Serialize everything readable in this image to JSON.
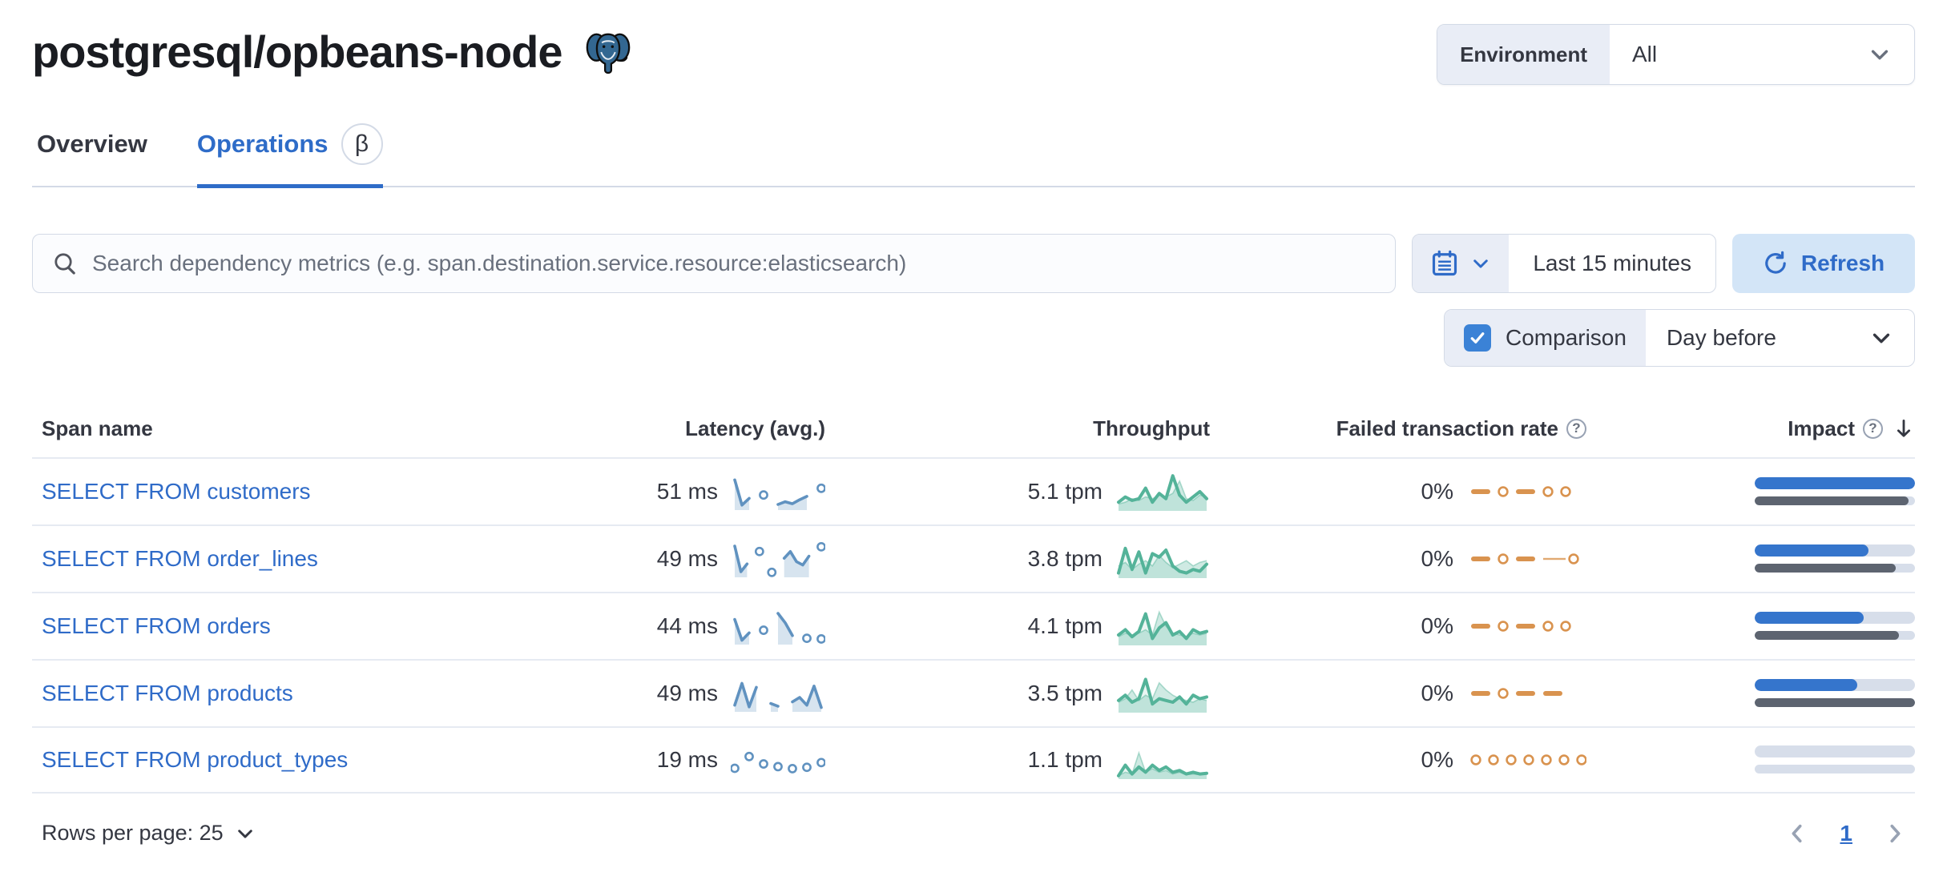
{
  "header": {
    "title": "postgresql/opbeans-node",
    "environment_label": "Environment",
    "environment_value": "All"
  },
  "tabs": [
    {
      "label": "Overview",
      "active": false
    },
    {
      "label": "Operations",
      "active": true,
      "beta": "β"
    }
  ],
  "toolbar": {
    "search_placeholder": "Search dependency metrics (e.g. span.destination.service.resource:elasticsearch)",
    "time_range": "Last 15 minutes",
    "refresh_label": "Refresh",
    "comparison_label": "Comparison",
    "comparison_checked": true,
    "comparison_value": "Day before"
  },
  "colors": {
    "link_blue": "#2f6bc8",
    "latency_spark": "#6092c0",
    "throughput_spark": "#54b399",
    "failed_spark": "#d9934f",
    "impact_current": "#3575cc",
    "impact_previous": "#5d6470"
  },
  "table": {
    "columns": [
      "Span name",
      "Latency (avg.)",
      "Throughput",
      "Failed transaction rate",
      "Impact"
    ],
    "rows": [
      {
        "span_name": "SELECT FROM customers",
        "latency": "51 ms",
        "latency_spark": [
          85,
          10,
          30,
          null,
          40,
          null,
          12,
          20,
          14,
          26,
          36,
          null,
          60
        ],
        "throughput": "5.1 tpm",
        "throughput_spark": [
          20,
          35,
          25,
          30,
          60,
          20,
          45,
          30,
          95,
          40,
          20,
          35,
          50,
          30
        ],
        "throughput_prev_spark": [
          15,
          20,
          30,
          25,
          35,
          30,
          40,
          35,
          45,
          80,
          30,
          25,
          40,
          35
        ],
        "failed_rate": "0%",
        "failed_pattern": [
          "dash",
          "dot",
          "dash",
          "dot",
          "dot"
        ],
        "impact_current": 100,
        "impact_previous": 96
      },
      {
        "span_name": "SELECT FROM order_lines",
        "latency": "49 ms",
        "latency_spark": [
          88,
          12,
          35,
          null,
          72,
          null,
          10,
          null,
          52,
          72,
          42,
          32,
          58,
          null,
          86
        ],
        "throughput": "3.8 tpm",
        "throughput_spark": [
          10,
          80,
          20,
          70,
          10,
          65,
          55,
          75,
          30,
          15,
          10,
          20,
          15,
          35
        ],
        "throughput_prev_spark": [
          30,
          40,
          20,
          35,
          45,
          30,
          60,
          40,
          25,
          35,
          45,
          30,
          40,
          45
        ],
        "failed_rate": "0%",
        "failed_pattern": [
          "dash",
          "dot",
          "dash",
          "line",
          "dot"
        ],
        "impact_current": 71,
        "impact_previous": 88
      },
      {
        "span_name": "SELECT FROM orders",
        "latency": "44 ms",
        "latency_spark": [
          70,
          8,
          30,
          null,
          38,
          null,
          88,
          60,
          22,
          null,
          14,
          null,
          12
        ],
        "throughput": "4.1 tpm",
        "throughput_spark": [
          25,
          40,
          20,
          35,
          85,
          15,
          45,
          60,
          25,
          35,
          15,
          40,
          30,
          35
        ],
        "throughput_prev_spark": [
          20,
          30,
          25,
          30,
          40,
          25,
          90,
          50,
          30,
          25,
          20,
          30,
          25,
          30
        ],
        "failed_rate": "0%",
        "failed_pattern": [
          "dash",
          "dot",
          "dash",
          "dot",
          "dot"
        ],
        "impact_current": 68,
        "impact_previous": 90
      },
      {
        "span_name": "SELECT FROM products",
        "latency": "49 ms",
        "latency_spark": [
          15,
          80,
          10,
          68,
          null,
          20,
          12,
          null,
          25,
          38,
          15,
          72,
          8
        ],
        "throughput": "3.5 tpm",
        "throughput_spark": [
          30,
          45,
          25,
          35,
          90,
          20,
          35,
          30,
          25,
          40,
          20,
          45,
          35,
          40
        ],
        "throughput_prev_spark": [
          25,
          35,
          60,
          30,
          45,
          35,
          80,
          60,
          45,
          35,
          30,
          25,
          35,
          30
        ],
        "failed_rate": "0%",
        "failed_pattern": [
          "dash",
          "dot",
          "dash",
          "dash"
        ],
        "impact_current": 64,
        "impact_previous": 100
      },
      {
        "span_name": "SELECT FROM product_types",
        "latency": "19 ms",
        "latency_spark": [
          25,
          null,
          60,
          null,
          38,
          null,
          30,
          null,
          24,
          null,
          28,
          null,
          42
        ],
        "throughput": "1.1 tpm",
        "throughput_spark": [
          5,
          35,
          10,
          30,
          15,
          35,
          20,
          30,
          15,
          20,
          10,
          15,
          10,
          12
        ],
        "throughput_prev_spark": [
          5,
          15,
          10,
          70,
          15,
          25,
          15,
          20,
          10,
          15,
          8,
          10,
          8,
          10
        ],
        "failed_rate": "0%",
        "failed_pattern": [
          "dot",
          "dot",
          "dot",
          "dot",
          "dot",
          "dot",
          "dot"
        ],
        "impact_current": 0,
        "impact_previous": 0
      }
    ]
  },
  "footer": {
    "rows_per_page_label": "Rows per page: 25",
    "page": "1"
  }
}
